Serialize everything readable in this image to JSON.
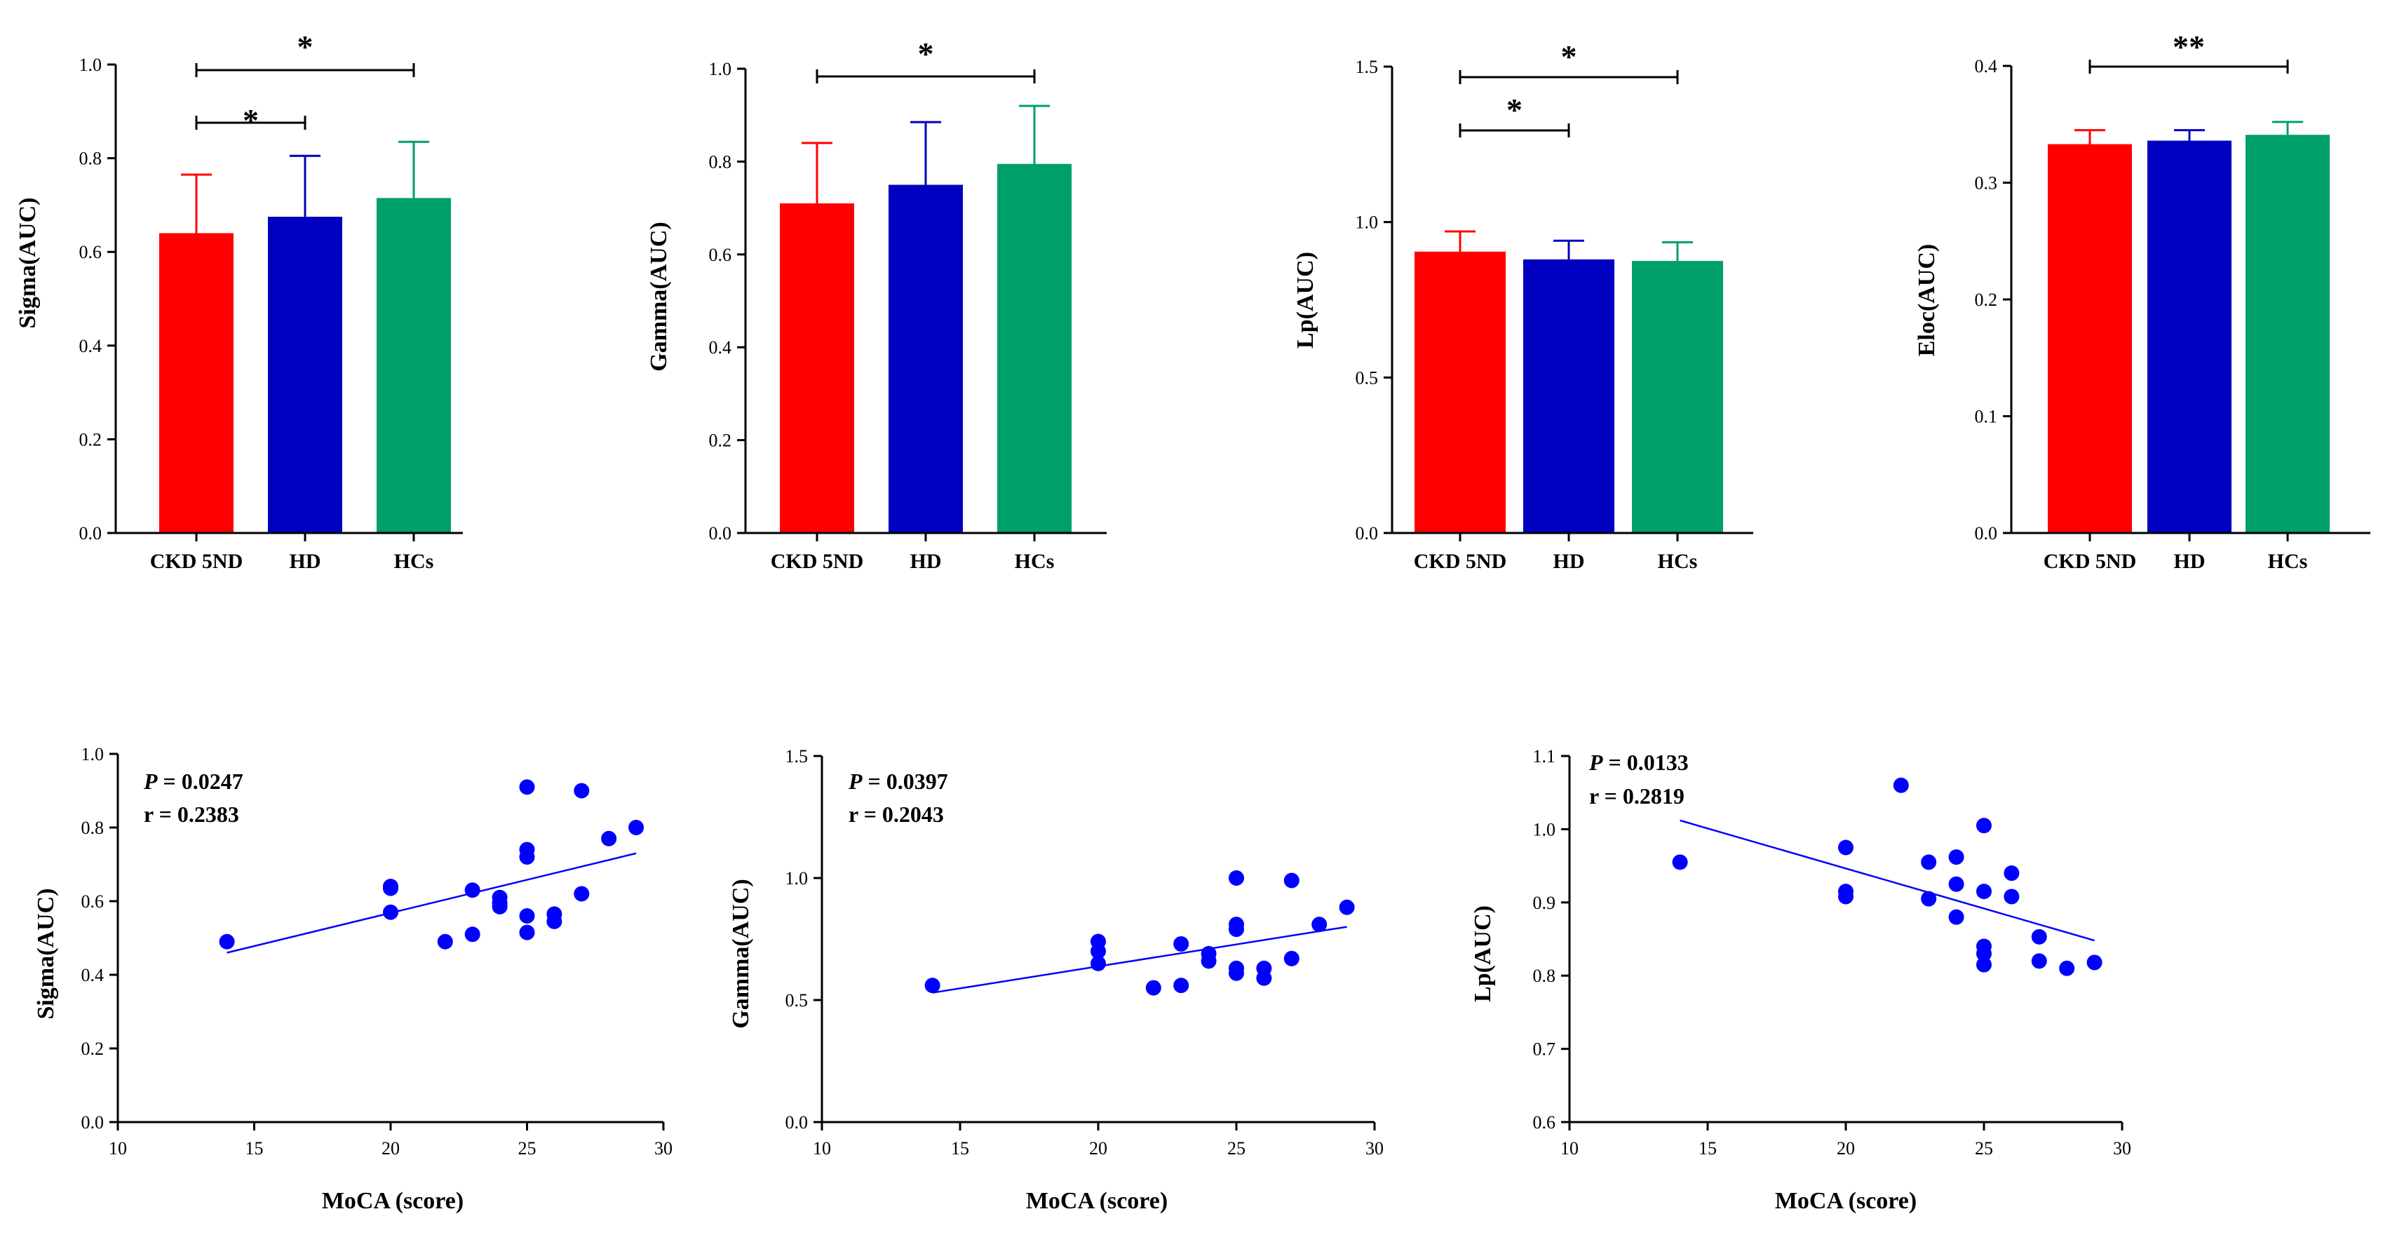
{
  "chart_data": [
    {
      "type": "bar",
      "ylabel": "Sigma(AUC)",
      "categories": [
        "CKD 5ND",
        "HD",
        "HCs"
      ],
      "values": [
        0.64,
        0.675,
        0.715
      ],
      "errors": [
        0.125,
        0.13,
        0.12
      ],
      "colors": [
        "#ff0000",
        "#0000c0",
        "#00a06a"
      ],
      "ylim": [
        0,
        1.0
      ],
      "yticks": [
        0.0,
        0.2,
        0.4,
        0.6,
        0.8,
        1.0
      ],
      "ytick_labels": [
        "0.0",
        "0.2",
        "0.4",
        "0.6",
        "0.8",
        "1.0"
      ],
      "significance": [
        {
          "from": 0,
          "to": 2,
          "label": "*"
        },
        {
          "from": 0,
          "to": 1,
          "label": "*"
        }
      ]
    },
    {
      "type": "bar",
      "ylabel": "Gamma(AUC)",
      "categories": [
        "CKD 5ND",
        "HD",
        "HCs"
      ],
      "values": [
        0.71,
        0.75,
        0.795
      ],
      "errors": [
        0.13,
        0.135,
        0.125
      ],
      "colors": [
        "#ff0000",
        "#0000c0",
        "#00a06a"
      ],
      "ylim": [
        0,
        1.0
      ],
      "yticks": [
        0.0,
        0.2,
        0.4,
        0.6,
        0.8,
        1.0
      ],
      "ytick_labels": [
        "0.0",
        "0.2",
        "0.4",
        "0.6",
        "0.8",
        "1.0"
      ],
      "significance": [
        {
          "from": 0,
          "to": 2,
          "label": "*"
        }
      ]
    },
    {
      "type": "bar",
      "ylabel": "Lp(AUC)",
      "categories": [
        "CKD 5ND",
        "HD",
        "HCs"
      ],
      "values": [
        0.905,
        0.88,
        0.875
      ],
      "errors": [
        0.065,
        0.06,
        0.06
      ],
      "colors": [
        "#ff0000",
        "#0000c0",
        "#00a06a"
      ],
      "ylim": [
        0,
        1.5
      ],
      "yticks": [
        0.0,
        0.5,
        1.0,
        1.5
      ],
      "ytick_labels": [
        "0.0",
        "0.5",
        "1.0",
        "1.5"
      ],
      "significance": [
        {
          "from": 0,
          "to": 2,
          "label": "*"
        },
        {
          "from": 0,
          "to": 1,
          "label": "*"
        }
      ]
    },
    {
      "type": "bar",
      "ylabel": "Eloc(AUC)",
      "categories": [
        "CKD 5ND",
        "HD",
        "HCs"
      ],
      "values": [
        0.333,
        0.336,
        0.341
      ],
      "errors": [
        0.012,
        0.009,
        0.011
      ],
      "colors": [
        "#ff0000",
        "#0000c0",
        "#00a06a"
      ],
      "ylim": [
        0,
        0.4
      ],
      "yticks": [
        0.0,
        0.1,
        0.2,
        0.3,
        0.4
      ],
      "ytick_labels": [
        "0.0",
        "0.1",
        "0.2",
        "0.3",
        "0.4"
      ],
      "significance": [
        {
          "from": 0,
          "to": 2,
          "label": "**"
        }
      ]
    },
    {
      "type": "scatter",
      "xlabel": "MoCA (score)",
      "ylabel": "Sigma(AUC)",
      "p_label": "P",
      "p_value": " = 0.0247",
      "r_text": "r = 0.2383",
      "xlim": [
        10,
        30
      ],
      "ylim": [
        0,
        1.0
      ],
      "xticks": [
        10,
        15,
        20,
        25,
        30
      ],
      "xtick_labels": [
        "10",
        "15",
        "20",
        "25",
        "30"
      ],
      "yticks": [
        0.0,
        0.2,
        0.4,
        0.6,
        0.8,
        1.0
      ],
      "ytick_labels": [
        "0.0",
        "0.2",
        "0.4",
        "0.6",
        "0.8",
        "1.0"
      ],
      "point_color": "#0000ff",
      "x": [
        14,
        20,
        20,
        20,
        22,
        23,
        23,
        24,
        24,
        24,
        25,
        25,
        25,
        25,
        25,
        26,
        26,
        27,
        27,
        28,
        29
      ],
      "y": [
        0.49,
        0.64,
        0.635,
        0.57,
        0.49,
        0.63,
        0.51,
        0.61,
        0.595,
        0.585,
        0.91,
        0.74,
        0.72,
        0.56,
        0.515,
        0.565,
        0.545,
        0.9,
        0.62,
        0.77,
        0.8
      ],
      "fit": {
        "x": [
          14,
          29
        ],
        "y": [
          0.46,
          0.73
        ]
      }
    },
    {
      "type": "scatter",
      "xlabel": "MoCA (score)",
      "ylabel": "Gamma(AUC)",
      "p_label": "P",
      "p_value": " = 0.0397",
      "r_text": "r = 0.2043",
      "xlim": [
        10,
        30
      ],
      "ylim": [
        0,
        1.5
      ],
      "xticks": [
        10,
        15,
        20,
        25,
        30
      ],
      "xtick_labels": [
        "10",
        "15",
        "20",
        "25",
        "30"
      ],
      "yticks": [
        0.0,
        0.5,
        1.0,
        1.5
      ],
      "ytick_labels": [
        "0.0",
        "0.5",
        "1.0",
        "1.5"
      ],
      "point_color": "#0000ff",
      "x": [
        14,
        20,
        20,
        20,
        22,
        23,
        23,
        24,
        24,
        25,
        25,
        25,
        25,
        25,
        26,
        26,
        27,
        27,
        28,
        29
      ],
      "y": [
        0.56,
        0.74,
        0.7,
        0.65,
        0.55,
        0.73,
        0.56,
        0.69,
        0.66,
        1.0,
        0.81,
        0.79,
        0.63,
        0.61,
        0.63,
        0.59,
        0.99,
        0.67,
        0.81,
        0.88
      ],
      "fit": {
        "x": [
          14,
          29
        ],
        "y": [
          0.53,
          0.8
        ]
      }
    },
    {
      "type": "scatter",
      "xlabel": "MoCA (score)",
      "ylabel": "Lp(AUC)",
      "p_label": "P",
      "p_value": " = 0.0133",
      "r_text": "r = 0.2819",
      "xlim": [
        10,
        30
      ],
      "ylim": [
        0.6,
        1.1
      ],
      "xticks": [
        10,
        15,
        20,
        25,
        30
      ],
      "xtick_labels": [
        "10",
        "15",
        "20",
        "25",
        "30"
      ],
      "yticks": [
        0.6,
        0.7,
        0.8,
        0.9,
        1.0,
        1.1
      ],
      "ytick_labels": [
        "0.6",
        "0.7",
        "0.8",
        "0.9",
        "1.0",
        "1.1"
      ],
      "point_color": "#0000ff",
      "x": [
        14,
        20,
        20,
        20,
        22,
        23,
        23,
        24,
        24,
        24,
        25,
        25,
        25,
        25,
        25,
        26,
        26,
        27,
        27,
        28,
        29
      ],
      "y": [
        0.955,
        0.975,
        0.915,
        0.908,
        1.06,
        0.955,
        0.905,
        0.962,
        0.925,
        0.88,
        1.005,
        0.915,
        0.84,
        0.83,
        0.815,
        0.94,
        0.908,
        0.853,
        0.82,
        0.81,
        0.818
      ],
      "fit": {
        "x": [
          14,
          29
        ],
        "y": [
          1.012,
          0.848
        ]
      }
    }
  ]
}
